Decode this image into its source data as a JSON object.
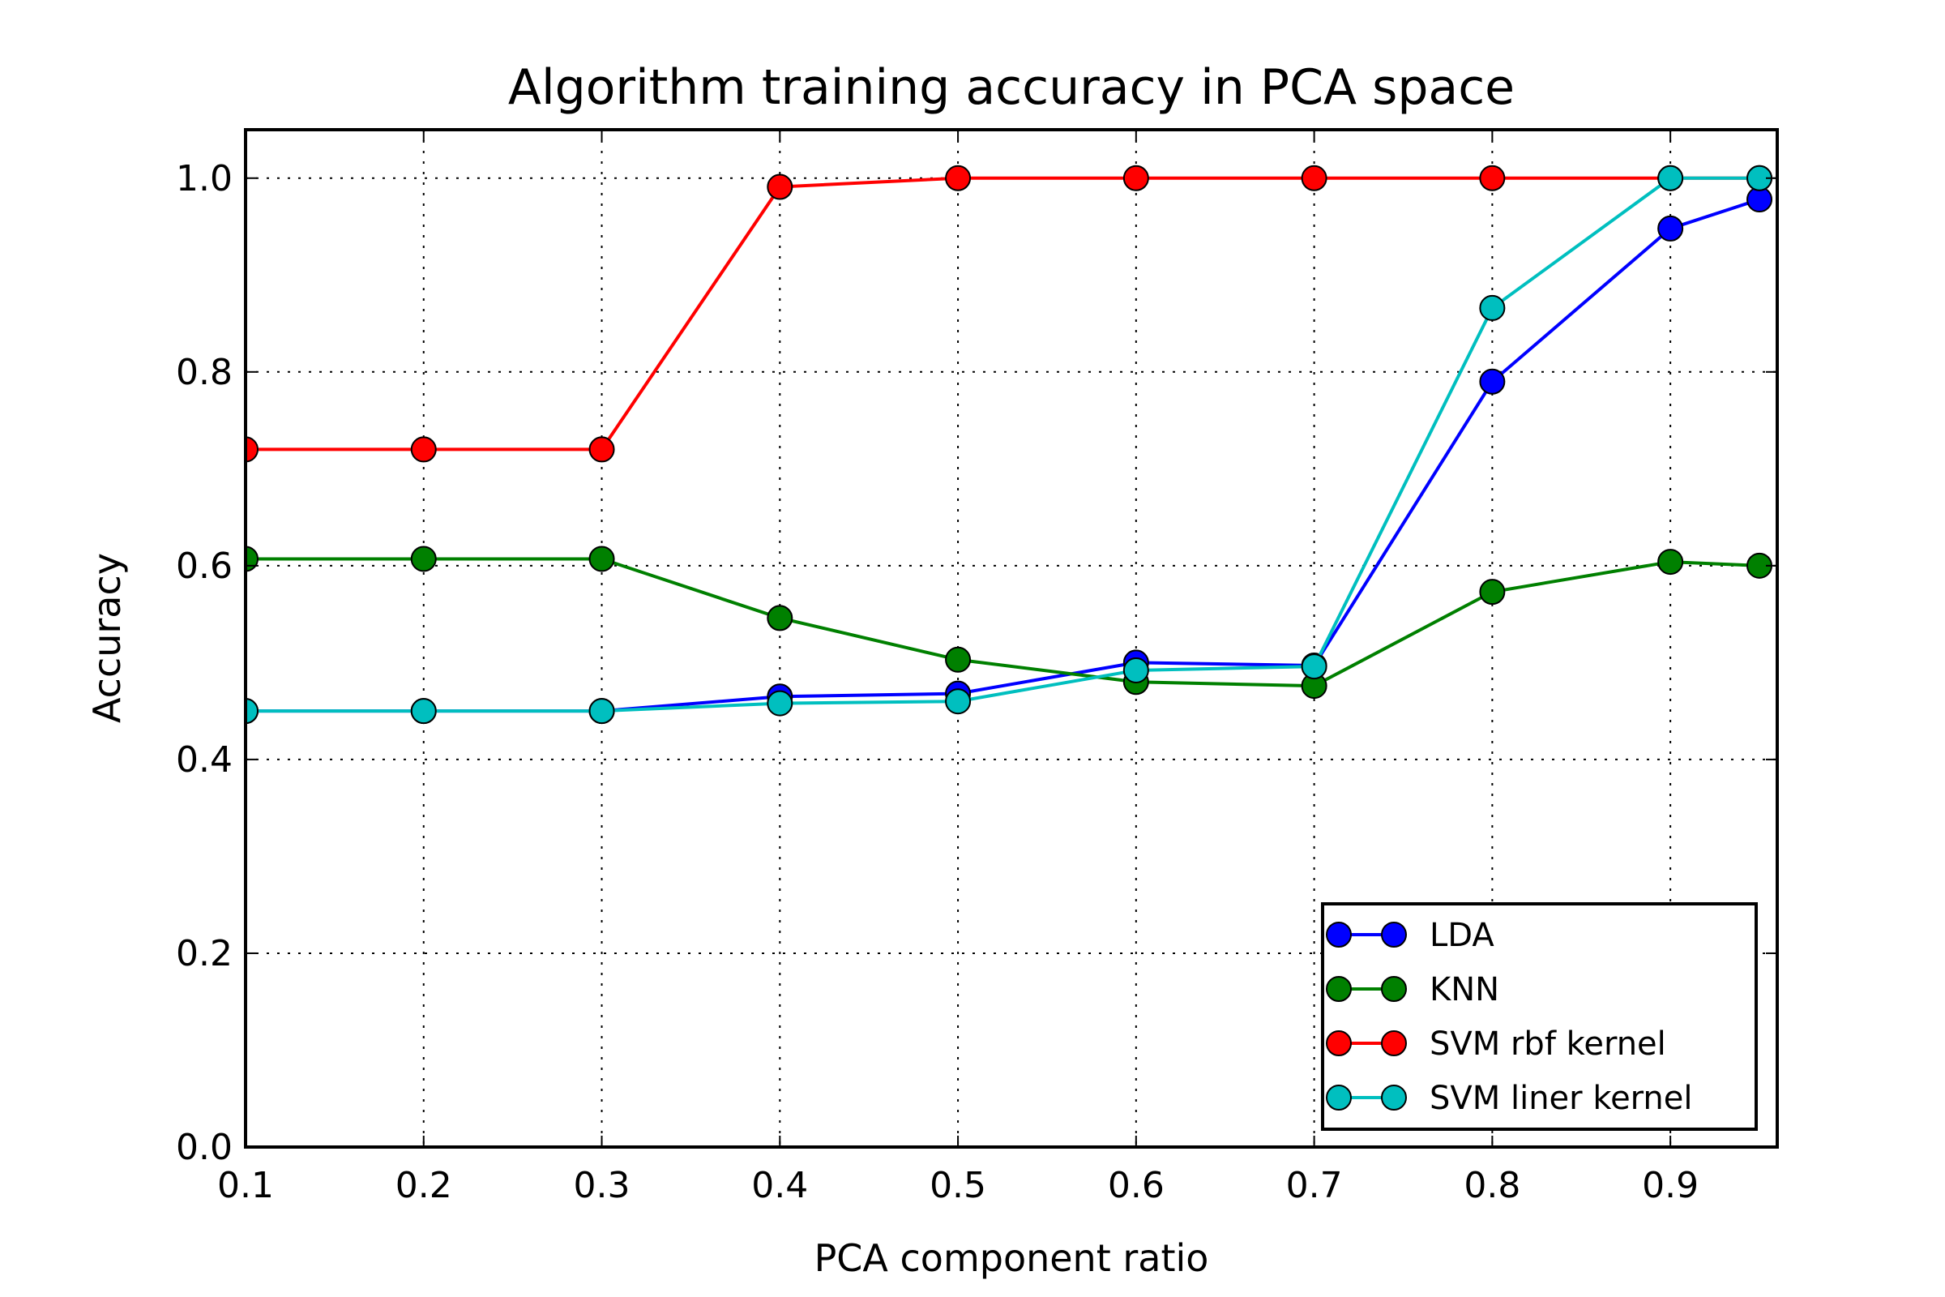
{
  "chart_data": {
    "type": "line",
    "title": "Algorithm training accuracy in PCA space",
    "xlabel": "PCA component ratio",
    "ylabel": "Accuracy",
    "xlim": [
      0.1,
      0.96
    ],
    "ylim": [
      0.0,
      1.05
    ],
    "xticks": [
      "0.1",
      "0.2",
      "0.3",
      "0.4",
      "0.5",
      "0.6",
      "0.7",
      "0.8",
      "0.9"
    ],
    "yticks": [
      "0.0",
      "0.2",
      "0.4",
      "0.6",
      "0.8",
      "1.0"
    ],
    "grid": true,
    "legend_position": "lower-right",
    "x": [
      0.1,
      0.2,
      0.3,
      0.4,
      0.5,
      0.6,
      0.7,
      0.8,
      0.9,
      0.95
    ],
    "series": [
      {
        "name": "LDA",
        "color": "#0000ff",
        "values": [
          0.45,
          0.45,
          0.45,
          0.465,
          0.468,
          0.5,
          0.497,
          0.79,
          0.948,
          0.978
        ]
      },
      {
        "name": "KNN",
        "color": "#008000",
        "values": [
          0.607,
          0.607,
          0.607,
          0.546,
          0.503,
          0.48,
          0.476,
          0.573,
          0.604,
          0.6
        ]
      },
      {
        "name": "SVM rbf kernel",
        "color": "#ff0000",
        "values": [
          0.72,
          0.72,
          0.72,
          0.991,
          1.0,
          1.0,
          1.0,
          1.0,
          1.0,
          1.0
        ]
      },
      {
        "name": "SVM liner kernel",
        "color": "#00bfbf",
        "values": [
          0.45,
          0.45,
          0.45,
          0.458,
          0.46,
          0.492,
          0.496,
          0.866,
          1.0,
          1.0
        ]
      }
    ]
  }
}
